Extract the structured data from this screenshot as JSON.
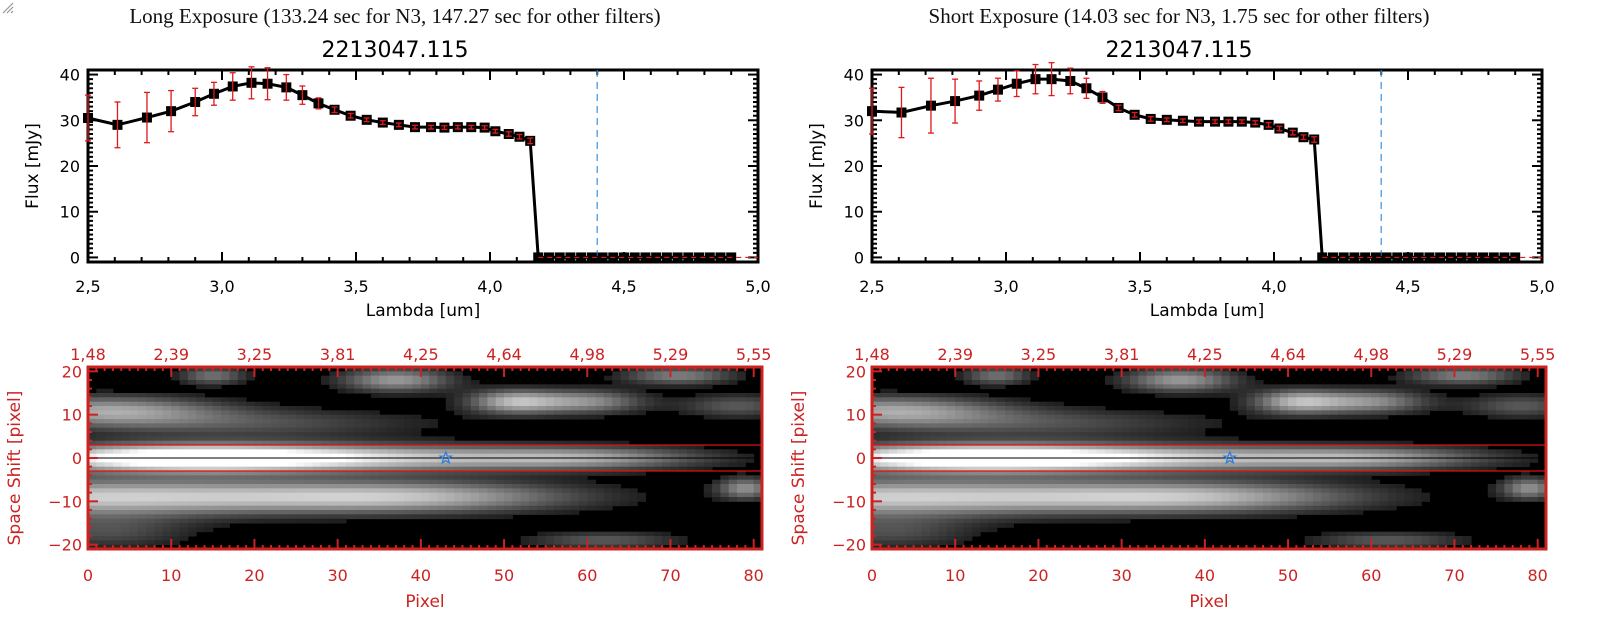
{
  "panels": [
    {
      "id": "long",
      "title": "Long Exposure (133.24 sec for N3, 147.27 sec for other filters)",
      "object_id": "2213047.115"
    },
    {
      "id": "short",
      "title": "Short Exposure (14.03 sec for N3, 1.75 sec for other filters)",
      "object_id": "2213047.115"
    }
  ],
  "chart_data": [
    {
      "type": "line",
      "panel": "long",
      "title": "2213047.115",
      "xlabel": "Lambda [um]",
      "ylabel": "Flux [mJy]",
      "xlim": [
        2.5,
        5.0
      ],
      "ylim": [
        -1,
        41
      ],
      "xticks": [
        "2.5",
        "3.0",
        "3.5",
        "4.0",
        "4.5",
        "5.0"
      ],
      "yticks": [
        "0",
        "10",
        "20",
        "30",
        "40"
      ],
      "vline_x": 4.4,
      "colors": {
        "line": "#000000",
        "errorbar": "#e0191c",
        "vline": "#3b8fe0",
        "zero_dash": "#e0191c"
      },
      "series": [
        {
          "name": "flux",
          "x": [
            2.5,
            2.61,
            2.72,
            2.81,
            2.9,
            2.97,
            3.04,
            3.11,
            3.17,
            3.24,
            3.3,
            3.36,
            3.42,
            3.48,
            3.54,
            3.6,
            3.66,
            3.72,
            3.78,
            3.83,
            3.88,
            3.93,
            3.98,
            4.02,
            4.07,
            4.11,
            4.15,
            4.18,
            4.22,
            4.26,
            4.3,
            4.34,
            4.38,
            4.42,
            4.46,
            4.5,
            4.54,
            4.58,
            4.62,
            4.66,
            4.7,
            4.74,
            4.78,
            4.82,
            4.86,
            4.9
          ],
          "y": [
            30.5,
            29.0,
            30.6,
            32.0,
            34.0,
            35.8,
            37.4,
            38.2,
            38.0,
            37.2,
            35.5,
            33.7,
            32.3,
            31.0,
            30.1,
            29.5,
            29.0,
            28.5,
            28.5,
            28.4,
            28.5,
            28.5,
            28.4,
            27.6,
            27.0,
            26.4,
            25.5,
            0,
            0,
            0,
            0,
            0,
            0,
            0,
            0,
            0,
            0,
            0,
            0,
            0,
            0,
            0,
            0,
            0,
            0,
            0
          ],
          "err": [
            5.0,
            5.0,
            5.5,
            4.5,
            3.0,
            2.5,
            3.0,
            3.5,
            3.5,
            2.8,
            2.0,
            1.2,
            0.6,
            0.5,
            0.4,
            0.4,
            0.4,
            0.4,
            0.4,
            0.4,
            0.4,
            0.4,
            0.4,
            0.4,
            0.5,
            0.5,
            0.6,
            0,
            0,
            0,
            0,
            0,
            0,
            0,
            0,
            0,
            0,
            0,
            0,
            0,
            0,
            0,
            0,
            0,
            0,
            0
          ]
        }
      ]
    },
    {
      "type": "heatmap",
      "panel": "long",
      "xlabel": "Pixel",
      "ylabel": "Space Shift [pixel]",
      "xlim": [
        0,
        81
      ],
      "ylim": [
        -21,
        21
      ],
      "xticks": [
        "0",
        "10",
        "20",
        "30",
        "40",
        "50",
        "60",
        "70",
        "80"
      ],
      "yticks": [
        "-20",
        "-10",
        "0",
        "10",
        "20"
      ],
      "top_xticks": [
        "1.48",
        "2.39",
        "3.25",
        "3.81",
        "4.25",
        "4.64",
        "4.98",
        "5.29",
        "5.55"
      ],
      "aperture": [
        -3,
        3
      ],
      "star_marker": {
        "x": 43,
        "y": 0
      },
      "colors": {
        "axis": "#cc2222",
        "aperture": "#dd1111",
        "star": "#2a7fe0"
      }
    },
    {
      "type": "line",
      "panel": "short",
      "title": "2213047.115",
      "xlabel": "Lambda [um]",
      "ylabel": "Flux [mJy]",
      "xlim": [
        2.5,
        5.0
      ],
      "ylim": [
        -1,
        41
      ],
      "xticks": [
        "2.5",
        "3.0",
        "3.5",
        "4.0",
        "4.5",
        "5.0"
      ],
      "yticks": [
        "0",
        "10",
        "20",
        "30",
        "40"
      ],
      "vline_x": 4.4,
      "colors": {
        "line": "#000000",
        "errorbar": "#e0191c",
        "vline": "#3b8fe0",
        "zero_dash": "#e0191c"
      },
      "series": [
        {
          "name": "flux",
          "x": [
            2.5,
            2.61,
            2.72,
            2.81,
            2.9,
            2.97,
            3.04,
            3.11,
            3.17,
            3.24,
            3.3,
            3.36,
            3.42,
            3.48,
            3.54,
            3.6,
            3.66,
            3.72,
            3.78,
            3.83,
            3.88,
            3.93,
            3.98,
            4.02,
            4.07,
            4.11,
            4.15,
            4.18,
            4.22,
            4.26,
            4.3,
            4.34,
            4.38,
            4.42,
            4.46,
            4.5,
            4.54,
            4.58,
            4.62,
            4.66,
            4.7,
            4.74,
            4.78,
            4.82,
            4.86,
            4.9
          ],
          "y": [
            32.0,
            31.7,
            33.2,
            34.2,
            35.4,
            36.7,
            38.0,
            39.0,
            39.0,
            38.6,
            37.0,
            35.0,
            32.7,
            31.2,
            30.3,
            30.1,
            29.9,
            29.7,
            29.7,
            29.7,
            29.7,
            29.5,
            29.0,
            28.2,
            27.3,
            26.3,
            25.8,
            0,
            0,
            0,
            0,
            0,
            0,
            0,
            0,
            0,
            0,
            0,
            0,
            0,
            0,
            0,
            0,
            0,
            0,
            0
          ],
          "err": [
            5.0,
            5.5,
            6.0,
            4.8,
            3.2,
            2.5,
            2.8,
            3.2,
            3.6,
            2.8,
            2.2,
            1.3,
            0.6,
            0.5,
            0.5,
            0.4,
            0.4,
            0.4,
            0.4,
            0.4,
            0.4,
            0.4,
            0.5,
            0.5,
            0.5,
            0.5,
            0.6,
            0,
            0,
            0,
            0,
            0,
            0,
            0,
            0,
            0,
            0,
            0,
            0,
            0,
            0,
            0,
            0,
            0,
            0,
            0
          ]
        }
      ]
    },
    {
      "type": "heatmap",
      "panel": "short",
      "xlabel": "Pixel",
      "ylabel": "Space Shift [pixel]",
      "xlim": [
        0,
        81
      ],
      "ylim": [
        -21,
        21
      ],
      "xticks": [
        "0",
        "10",
        "20",
        "30",
        "40",
        "50",
        "60",
        "70",
        "80"
      ],
      "yticks": [
        "-20",
        "-10",
        "0",
        "10",
        "20"
      ],
      "top_xticks": [
        "1.48",
        "2.39",
        "3.25",
        "3.81",
        "4.25",
        "4.64",
        "4.98",
        "5.29",
        "5.55"
      ],
      "aperture": [
        -3,
        3
      ],
      "star_marker": {
        "x": 43,
        "y": 0
      },
      "colors": {
        "axis": "#cc2222",
        "aperture": "#dd1111",
        "star": "#2a7fe0"
      }
    }
  ]
}
